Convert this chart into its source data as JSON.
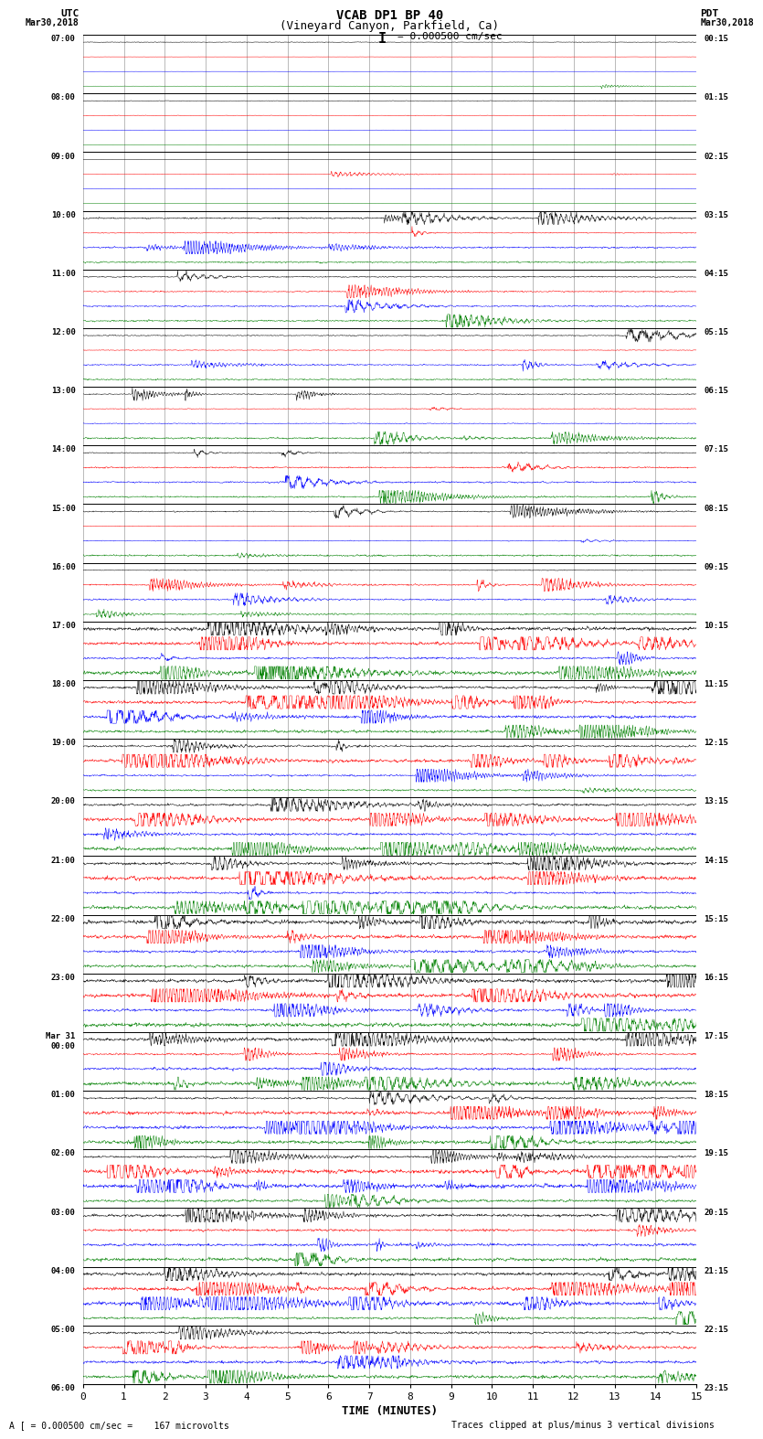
{
  "title_line1": "VCAB DP1 BP 40",
  "title_line2": "(Vineyard Canyon, Parkfield, Ca)",
  "scale_text": "I = 0.000500 cm/sec",
  "left_label_top": "UTC",
  "left_label_date": "Mar30,2018",
  "right_label_top": "PDT",
  "right_label_date": "Mar30,2018",
  "bottom_note": "A [ = 0.000500 cm/sec =    167 microvolts",
  "bottom_note2": "Traces clipped at plus/minus 3 vertical divisions",
  "xlabel": "TIME (MINUTES)",
  "utc_labels": [
    [
      "07:00",
      0
    ],
    [
      "08:00",
      4
    ],
    [
      "09:00",
      8
    ],
    [
      "10:00",
      12
    ],
    [
      "11:00",
      16
    ],
    [
      "12:00",
      20
    ],
    [
      "13:00",
      24
    ],
    [
      "14:00",
      28
    ],
    [
      "15:00",
      32
    ],
    [
      "16:00",
      36
    ],
    [
      "17:00",
      40
    ],
    [
      "18:00",
      44
    ],
    [
      "19:00",
      48
    ],
    [
      "20:00",
      52
    ],
    [
      "21:00",
      56
    ],
    [
      "22:00",
      60
    ],
    [
      "23:00",
      64
    ],
    [
      "Mar 31\n00:00",
      68
    ],
    [
      "01:00",
      72
    ],
    [
      "02:00",
      76
    ],
    [
      "03:00",
      80
    ],
    [
      "04:00",
      84
    ],
    [
      "05:00",
      88
    ],
    [
      "06:00",
      92
    ]
  ],
  "pdt_labels": [
    [
      "00:15",
      0
    ],
    [
      "01:15",
      4
    ],
    [
      "02:15",
      8
    ],
    [
      "03:15",
      12
    ],
    [
      "04:15",
      16
    ],
    [
      "05:15",
      20
    ],
    [
      "06:15",
      24
    ],
    [
      "07:15",
      28
    ],
    [
      "08:15",
      32
    ],
    [
      "09:15",
      36
    ],
    [
      "10:15",
      40
    ],
    [
      "11:15",
      44
    ],
    [
      "12:15",
      48
    ],
    [
      "13:15",
      52
    ],
    [
      "14:15",
      56
    ],
    [
      "15:15",
      60
    ],
    [
      "16:15",
      64
    ],
    [
      "17:15",
      68
    ],
    [
      "18:15",
      72
    ],
    [
      "19:15",
      76
    ],
    [
      "20:15",
      80
    ],
    [
      "21:15",
      84
    ],
    [
      "22:15",
      88
    ],
    [
      "23:15",
      92
    ]
  ],
  "trace_colors": [
    "black",
    "red",
    "blue",
    "green"
  ],
  "num_rows": 92,
  "time_minutes": 15,
  "figsize": [
    8.5,
    16.13
  ],
  "dpi": 100,
  "high_activity_seed_rows": [
    40,
    41,
    42,
    43,
    44,
    45,
    46,
    47,
    48,
    49,
    50,
    51,
    52,
    53,
    54,
    55,
    56,
    57,
    58,
    59,
    60,
    61,
    62,
    63,
    64,
    65,
    66,
    67,
    68,
    69,
    70,
    71,
    72,
    73,
    74,
    75,
    76,
    77,
    78,
    79,
    80,
    81,
    82,
    83,
    84,
    85,
    86,
    87,
    88,
    89,
    90,
    91
  ],
  "moderate_rows": [
    12,
    13,
    14,
    15,
    16,
    17,
    18,
    19,
    20,
    21,
    22,
    23,
    24,
    25,
    26,
    27,
    28,
    29,
    30,
    31,
    32,
    33,
    34,
    35,
    36,
    37,
    38,
    39
  ]
}
